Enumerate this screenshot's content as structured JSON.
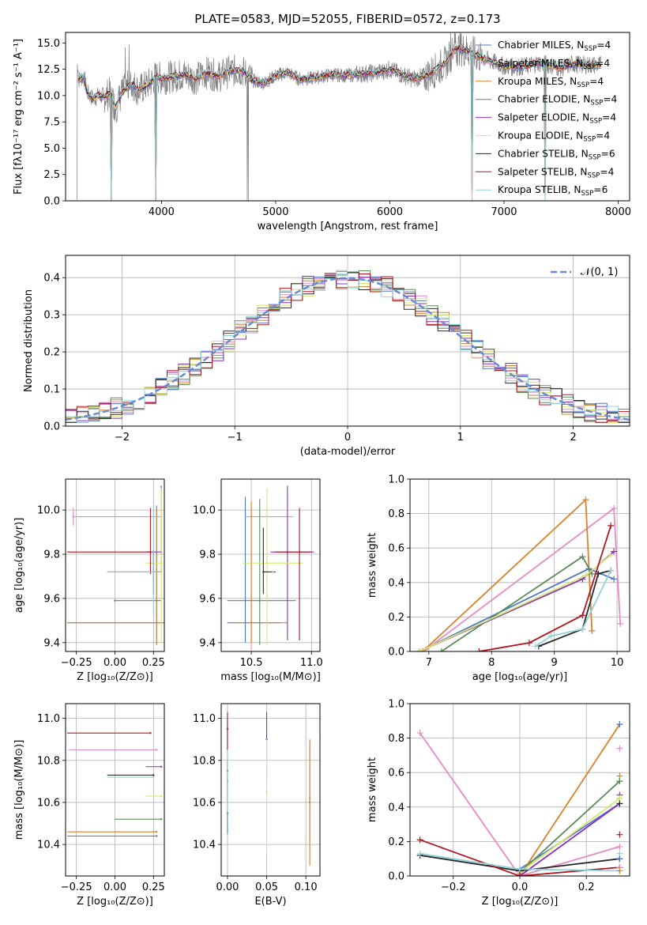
{
  "colors": {
    "spectrum": "#7f7f7f",
    "palette": [
      "#4e79c7",
      "#e78ac3",
      "#d9822b",
      "#5b8c5a",
      "#8a2fc2",
      "#d4e86a",
      "#2a2a2a",
      "#b0171f",
      "#8fd3d9"
    ],
    "normal": "#6a8ad6"
  },
  "chart_data": [
    {
      "id": "spectrum",
      "type": "line",
      "title": "PLATE=0583, MJD=52055, FIBERID=0572, z=0.173",
      "xlabel": "wavelength [Angstrom, rest frame]",
      "ylabel": "Flux [fλ10⁻¹⁷ erg cm⁻² s⁻¹ A⁻¹]",
      "xlim": [
        3160,
        8100
      ],
      "ylim": [
        0,
        16
      ],
      "xticks": [
        4000,
        5000,
        6000,
        7000,
        8000
      ],
      "yticks": [
        0.0,
        2.5,
        5.0,
        7.5,
        10.0,
        12.5,
        15.0
      ],
      "ytick_labels": [
        "0.0",
        "2.5",
        "5.0",
        "7.5",
        "10.0",
        "12.5",
        "15.0"
      ],
      "grid": false,
      "legend_position": "right",
      "series": [
        {
          "name": "Chabrier MILES, N$_{SSP}$=4",
          "legend": [
            "Chabrier MILES, N",
            "SSP",
            "=4"
          ]
        },
        {
          "name": "Salpeter MILES, N$_{SSP}$=4",
          "legend": [
            "Salpeter MILES, N",
            "SSP",
            "=4"
          ]
        },
        {
          "name": "Kroupa MILES, N$_{SSP}$=4",
          "legend": [
            "Kroupa MILES, N",
            "SSP",
            "=4"
          ]
        },
        {
          "name": "Chabrier ELODIE, N$_{SSP}$=4",
          "legend": [
            "Chabrier ELODIE, N",
            "SSP",
            "=4"
          ]
        },
        {
          "name": "Salpeter ELODIE, N$_{SSP}$=4",
          "legend": [
            "Salpeter ELODIE, N",
            "SSP",
            "=4"
          ]
        },
        {
          "name": "Kroupa ELODIE, N$_{SSP}$=4",
          "legend": [
            "Kroupa ELODIE, N",
            "SSP",
            "=4"
          ]
        },
        {
          "name": "Chabrier STELIB, N$_{SSP}$=6",
          "legend": [
            "Chabrier STELIB, N",
            "SSP",
            "=6"
          ]
        },
        {
          "name": "Salpeter STELIB, N$_{SSP}$=4",
          "legend": [
            "Salpeter STELIB, N",
            "SSP",
            "=4"
          ]
        },
        {
          "name": "Kroupa STELIB, N$_{SSP}$=6",
          "legend": [
            "Kroupa STELIB, N",
            "SSP",
            "=6"
          ]
        }
      ],
      "model_continuum": {
        "x": [
          3270,
          3320,
          3350,
          3400,
          3450,
          3500,
          3550,
          3600,
          3650,
          3700,
          3750,
          3800,
          3850,
          3900,
          3950,
          4000,
          4100,
          4200,
          4300,
          4400,
          4500,
          4600,
          4700,
          4800,
          4900,
          5000,
          5100,
          5200,
          5300,
          5400,
          5500,
          5600,
          5700,
          5800,
          5900,
          6000,
          6100,
          6200,
          6300,
          6400,
          6500,
          6560,
          6600,
          6700,
          6800,
          6900,
          7000,
          7100,
          7200,
          7300,
          7400,
          7500,
          7600,
          7700,
          7850
        ],
        "y": [
          11.5,
          11.8,
          10.3,
          9.7,
          10.0,
          9.9,
          10.2,
          8.8,
          10.2,
          10.8,
          11.0,
          10.5,
          10.8,
          11.2,
          11.8,
          11.6,
          11.8,
          12.0,
          11.6,
          12.2,
          11.8,
          12.3,
          12.4,
          11.4,
          11.2,
          11.9,
          12.2,
          11.6,
          11.6,
          11.8,
          12.0,
          11.9,
          12.0,
          12.1,
          12.2,
          12.5,
          12.0,
          11.6,
          11.8,
          12.4,
          13.2,
          14.3,
          14.5,
          14.2,
          13.6,
          13.2,
          12.8,
          12.7,
          12.8,
          13.1,
          12.9,
          12.6,
          13.0,
          12.9,
          12.9
        ]
      },
      "data_drops": [
        3260,
        3560,
        3950,
        4750,
        4760,
        6720,
        7360
      ],
      "model_drops": [
        3560,
        3950,
        6720,
        7360
      ]
    },
    {
      "id": "residuals",
      "type": "line",
      "xlabel": "(data-model)/error",
      "ylabel": "Normed distribution",
      "xlim": [
        -2.5,
        2.5
      ],
      "ylim": [
        0,
        0.46
      ],
      "xticks": [
        -2,
        -1,
        0,
        1,
        2
      ],
      "xtick_labels": [
        "−2",
        "−1",
        "0",
        "1",
        "2"
      ],
      "yticks": [
        0.0,
        0.1,
        0.2,
        0.3,
        0.4
      ],
      "ytick_labels": [
        "0.0",
        "0.1",
        "0.2",
        "0.3",
        "0.4"
      ],
      "grid": true,
      "legend_position": "top-right",
      "normal_label": "𝒩(0, 1)",
      "bin_width": 0.1
    },
    {
      "id": "age-vs-Z",
      "type": "scatter",
      "xlabel": "Z [log₁₀(Z/Z⊙)]",
      "ylabel": "age  [log₁₀(age/yr)]",
      "xlim": [
        -0.32,
        0.32
      ],
      "ylim": [
        9.36,
        10.14
      ],
      "xticks": [
        -0.25,
        0.0,
        0.25
      ],
      "xtick_labels": [
        "−0.25",
        "0.00",
        "0.25"
      ],
      "yticks": [
        9.4,
        9.6,
        9.8,
        10.0
      ],
      "ytick_labels": [
        "9.4",
        "9.6",
        "9.8",
        "10.0"
      ],
      "grid": true,
      "points": [
        {
          "x": 0.27,
          "y": 9.49,
          "xerr": [
            0.58,
            0.05
          ],
          "yerr": [
            0.1,
            0.53
          ]
        },
        {
          "x": -0.27,
          "y": 9.97,
          "xerr": [
            0.0,
            0.57
          ],
          "yerr": [
            0.04,
            0.04
          ]
        },
        {
          "x": 0.27,
          "y": 9.49,
          "xerr": [
            0.58,
            0.05
          ],
          "yerr": [
            0.1,
            0.52
          ]
        },
        {
          "x": 0.0,
          "y": 9.59,
          "xerr": [
            0.0,
            0.3
          ],
          "yerr": [
            0.0,
            0.0
          ]
        },
        {
          "x": 0.3,
          "y": 9.81,
          "xerr": [
            0.1,
            0.0
          ],
          "yerr": [
            0.1,
            0.3
          ]
        },
        {
          "x": 0.3,
          "y": 9.76,
          "xerr": [
            0.1,
            0.0
          ],
          "yerr": [
            0.36,
            0.34
          ]
        },
        {
          "x": 0.25,
          "y": 9.72,
          "xerr": [
            0.3,
            0.05
          ],
          "yerr": [
            0.1,
            0.1
          ]
        },
        {
          "x": 0.23,
          "y": 9.81,
          "xerr": [
            0.54,
            0.0
          ],
          "yerr": [
            0.1,
            0.2
          ]
        },
        {
          "x": 0.25,
          "y": 9.72,
          "xerr": [
            0.3,
            0.05
          ],
          "yerr": [
            0.2,
            0.3
          ]
        }
      ]
    },
    {
      "id": "age-vs-mass",
      "type": "scatter",
      "xlabel": "mass [log₁₀(M/M⊙)]",
      "ylabel": "",
      "xlim": [
        10.25,
        11.07
      ],
      "ylim": [
        9.36,
        10.14
      ],
      "xticks": [
        10.5,
        11.0
      ],
      "xtick_labels": [
        "10.5",
        "11.0"
      ],
      "yticks": [
        9.4,
        9.6,
        9.8,
        10.0
      ],
      "ytick_labels": [
        "9.4",
        "9.6",
        "9.8",
        "10.0"
      ],
      "grid": true,
      "points": [
        {
          "x": 10.45,
          "y": 9.49,
          "xerr": [
            0.15,
            0.3
          ],
          "yerr": [
            0.09,
            0.57
          ]
        },
        {
          "x": 10.5,
          "y": 9.97,
          "xerr": [
            0.05,
            0.35
          ],
          "yerr": [
            0.6,
            0.04
          ]
        },
        {
          "x": 10.5,
          "y": 9.49,
          "xerr": [
            0.16,
            0.3
          ],
          "yerr": [
            0.09,
            0.55
          ]
        },
        {
          "x": 10.57,
          "y": 9.59,
          "xerr": [
            0.27,
            0.3
          ],
          "yerr": [
            0.2,
            0.46
          ]
        },
        {
          "x": 10.8,
          "y": 9.81,
          "xerr": [
            0.14,
            0.22
          ],
          "yerr": [
            0.4,
            0.3
          ]
        },
        {
          "x": 10.63,
          "y": 9.76,
          "xerr": [
            0.2,
            0.3
          ],
          "yerr": [
            0.37,
            0.34
          ]
        },
        {
          "x": 10.6,
          "y": 9.72,
          "xerr": [
            0.0,
            0.1
          ],
          "yerr": [
            0.1,
            0.2
          ]
        },
        {
          "x": 10.9,
          "y": 9.81,
          "xerr": [
            0.2,
            0.1
          ],
          "yerr": [
            0.4,
            0.2
          ]
        },
        {
          "x": 10.68,
          "y": 9.72,
          "xerr": [
            0.0,
            0.0
          ],
          "yerr": [
            0.0,
            0.0
          ]
        }
      ]
    },
    {
      "id": "mass-weight-vs-age",
      "type": "line",
      "xlabel": "age  [log₁₀(age/yr)]",
      "ylabel": "mass weight",
      "xlim": [
        6.7,
        10.2
      ],
      "ylim": [
        0.0,
        1.0
      ],
      "xticks": [
        7,
        8,
        9,
        10
      ],
      "yticks": [
        0.0,
        0.2,
        0.4,
        0.6,
        0.8,
        1.0
      ],
      "ytick_labels": [
        "0.0",
        "0.2",
        "0.4",
        "0.6",
        "0.8",
        "1.0"
      ],
      "grid": true,
      "series": [
        {
          "x": [
            6.85,
            9.55,
            9.95
          ],
          "y": [
            0.0,
            0.48,
            0.42
          ]
        },
        {
          "x": [
            6.95,
            9.95,
            10.05
          ],
          "y": [
            0.01,
            0.83,
            0.16
          ]
        },
        {
          "x": [
            6.9,
            9.5,
            9.6
          ],
          "y": [
            0.0,
            0.88,
            0.12
          ]
        },
        {
          "x": [
            7.2,
            9.45,
            9.6
          ],
          "y": [
            0.0,
            0.55,
            0.45
          ]
        },
        {
          "x": [
            6.85,
            9.45,
            9.95
          ],
          "y": [
            0.0,
            0.42,
            0.58
          ]
        },
        {
          "x": [
            6.85,
            9.5,
            9.9
          ],
          "y": [
            0.0,
            0.44,
            0.56
          ]
        },
        {
          "x": [
            8.75,
            9.45,
            9.7,
            9.9
          ],
          "y": [
            0.03,
            0.13,
            0.45,
            0.47
          ]
        },
        {
          "x": [
            7.8,
            8.6,
            9.45,
            9.9
          ],
          "y": [
            0.0,
            0.05,
            0.21,
            0.73
          ]
        },
        {
          "x": [
            8.7,
            8.95,
            9.45,
            9.9
          ],
          "y": [
            0.03,
            0.09,
            0.13,
            0.47
          ]
        }
      ]
    },
    {
      "id": "mass-vs-Z",
      "type": "scatter",
      "xlabel": "Z [log₁₀(Z/Z⊙)]",
      "ylabel": "mass [log₁₀(M/M⊙)]",
      "xlim": [
        -0.32,
        0.32
      ],
      "ylim": [
        10.25,
        11.07
      ],
      "xticks": [
        -0.25,
        0.0,
        0.25
      ],
      "xtick_labels": [
        "−0.25",
        "0.00",
        "0.25"
      ],
      "yticks": [
        10.4,
        10.6,
        10.8,
        11.0
      ],
      "ytick_labels": [
        "10.4",
        "10.6",
        "10.8",
        "11.0"
      ],
      "grid": true,
      "points": [
        {
          "x": 0.27,
          "y": 10.44,
          "xerr": [
            0.58,
            0.0
          ],
          "yerr": [
            0.0,
            0.0
          ]
        },
        {
          "x": 0.27,
          "y": 10.85,
          "xerr": [
            0.57,
            0.0
          ],
          "yerr": [
            0.0,
            0.0
          ]
        },
        {
          "x": 0.27,
          "y": 10.46,
          "xerr": [
            0.58,
            0.0
          ],
          "yerr": [
            0.0,
            0.0
          ]
        },
        {
          "x": 0.3,
          "y": 10.52,
          "xerr": [
            0.3,
            0.0
          ],
          "yerr": [
            0.0,
            0.0
          ]
        },
        {
          "x": 0.3,
          "y": 10.77,
          "xerr": [
            0.1,
            0.0
          ],
          "yerr": [
            0.0,
            0.0
          ]
        },
        {
          "x": 0.3,
          "y": 10.63,
          "xerr": [
            0.1,
            0.0
          ],
          "yerr": [
            0.0,
            0.0
          ]
        },
        {
          "x": 0.25,
          "y": 10.73,
          "xerr": [
            0.3,
            0.0
          ],
          "yerr": [
            0.0,
            0.0
          ]
        },
        {
          "x": 0.23,
          "y": 10.93,
          "xerr": [
            0.54,
            0.0
          ],
          "yerr": [
            0.0,
            0.0
          ]
        },
        {
          "x": 0.25,
          "y": 10.72,
          "xerr": [
            0.3,
            0.0
          ],
          "yerr": [
            0.0,
            0.0
          ]
        }
      ]
    },
    {
      "id": "mass-vs-EBV",
      "type": "scatter",
      "xlabel": "E(B-V)",
      "ylabel": "",
      "xlim": [
        -0.008,
        0.118
      ],
      "ylim": [
        10.25,
        11.07
      ],
      "xticks": [
        0.0,
        0.05,
        0.1
      ],
      "xtick_labels": [
        "0.00",
        "0.05",
        "0.10"
      ],
      "yticks": [
        10.4,
        10.6,
        10.8,
        11.0
      ],
      "ytick_labels": [
        "10.4",
        "10.6",
        "10.8",
        "11.0"
      ],
      "grid": true,
      "points": [
        {
          "x": 0.0,
          "y": 10.75,
          "xerr": [
            0.0,
            0.0
          ],
          "yerr": [
            0.3,
            0.25
          ]
        },
        {
          "x": 0.105,
          "y": 10.62,
          "xerr": [
            0.0,
            0.0
          ],
          "yerr": [
            0.2,
            0.27
          ]
        },
        {
          "x": 0.105,
          "y": 10.6,
          "xerr": [
            0.0,
            0.0
          ],
          "yerr": [
            0.3,
            0.3
          ]
        },
        {
          "x": 0.0,
          "y": 10.55,
          "xerr": [
            0.0,
            0.0
          ],
          "yerr": [
            0.0,
            0.25
          ]
        },
        {
          "x": 0.05,
          "y": 10.9,
          "xerr": [
            0.0,
            0.0
          ],
          "yerr": [
            0.2,
            0.13
          ]
        },
        {
          "x": 0.05,
          "y": 10.65,
          "xerr": [
            0.0,
            0.0
          ],
          "yerr": [
            0.3,
            0.25
          ]
        },
        {
          "x": 0.0,
          "y": 10.7,
          "xerr": [
            0.0,
            0.0
          ],
          "yerr": [
            0.1,
            0.1
          ]
        },
        {
          "x": 0.0,
          "y": 10.95,
          "xerr": [
            0.0,
            0.0
          ],
          "yerr": [
            0.1,
            0.08
          ]
        },
        {
          "x": 0.0,
          "y": 10.7,
          "xerr": [
            0.0,
            0.0
          ],
          "yerr": [
            0.15,
            0.15
          ]
        }
      ]
    },
    {
      "id": "mass-weight-vs-Z",
      "type": "line",
      "xlabel": "Z [log₁₀(Z/Z⊙)]",
      "ylabel": "mass weight",
      "xlim": [
        -0.33,
        0.33
      ],
      "ylim": [
        0.0,
        1.0
      ],
      "xticks": [
        -0.2,
        0.0,
        0.2
      ],
      "xtick_labels": [
        "−0.2",
        "0.0",
        "0.2"
      ],
      "yticks": [
        0.0,
        0.2,
        0.4,
        0.6,
        0.8,
        1.0
      ],
      "ytick_labels": [
        "0.0",
        "0.2",
        "0.4",
        "0.6",
        "0.8",
        "1.0"
      ],
      "grid": true,
      "series": [
        {
          "x": [
            0.0,
            0.3
          ],
          "y": [
            0.04,
            0.42
          ]
        },
        {
          "x": [
            -0.3,
            0.0,
            0.3
          ],
          "y": [
            0.83,
            0.0,
            0.17
          ]
        },
        {
          "x": [
            0.0,
            0.3
          ],
          "y": [
            0.0,
            0.88
          ]
        },
        {
          "x": [
            0.0,
            0.3
          ],
          "y": [
            0.02,
            0.55
          ]
        },
        {
          "x": [
            0.0,
            0.3
          ],
          "y": [
            0.0,
            0.42
          ]
        },
        {
          "x": [
            0.0,
            0.3
          ],
          "y": [
            0.02,
            0.45
          ]
        },
        {
          "x": [
            -0.3,
            0.0,
            0.3
          ],
          "y": [
            0.12,
            0.03,
            0.1
          ]
        },
        {
          "x": [
            -0.3,
            0.0,
            0.3
          ],
          "y": [
            0.21,
            0.0,
            0.05
          ]
        },
        {
          "x": [
            -0.3,
            0.0,
            0.3
          ],
          "y": [
            0.13,
            0.04,
            0.03
          ]
        }
      ],
      "vertical_ticks_at_x": 0.3,
      "vertical_tick_values": [
        0.88,
        0.74,
        0.58,
        0.55,
        0.47,
        0.45,
        0.42,
        0.24,
        0.13,
        0.1,
        0.05,
        0.03
      ]
    }
  ]
}
